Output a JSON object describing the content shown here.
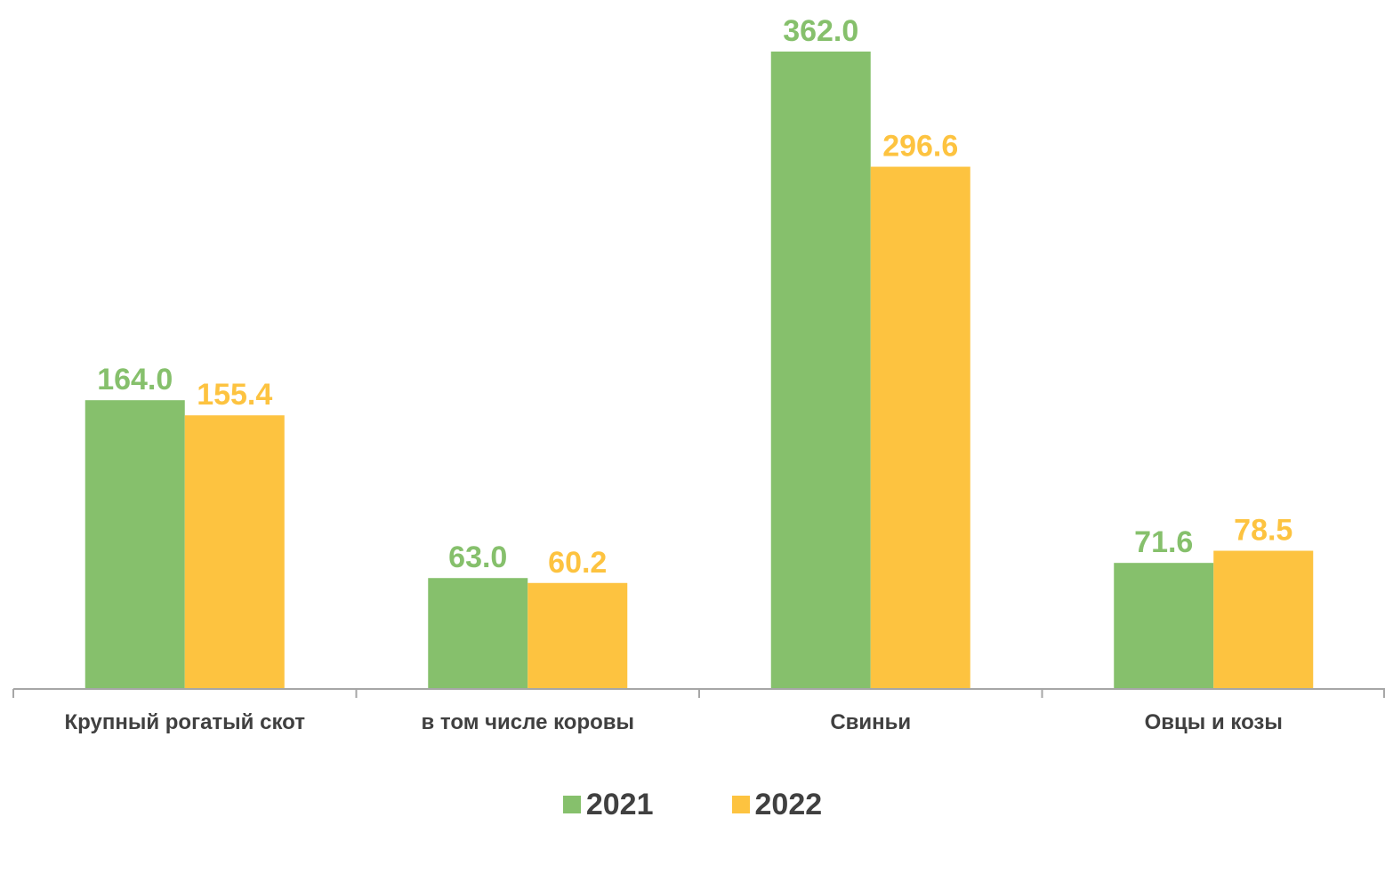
{
  "chart_data": {
    "type": "bar",
    "categories": [
      "Крупный рогатый скот",
      "в том числе коровы",
      "Свиньи",
      "Овцы и козы"
    ],
    "series": [
      {
        "name": "2021",
        "values": [
          164.0,
          63.0,
          362.0,
          71.6
        ],
        "labels": [
          "164.0",
          "63.0",
          "362.0",
          "71.6"
        ],
        "color": "#86C06C"
      },
      {
        "name": "2022",
        "values": [
          155.4,
          60.2,
          296.6,
          78.5
        ],
        "labels": [
          "155.4",
          "60.2",
          "296.6",
          "78.5"
        ],
        "color": "#FDC340"
      }
    ],
    "ylim": [
      0,
      362.0
    ],
    "grid": false,
    "legend_position": "bottom",
    "axis_color": "#A6A6A6",
    "category_label_color": "#404040"
  }
}
